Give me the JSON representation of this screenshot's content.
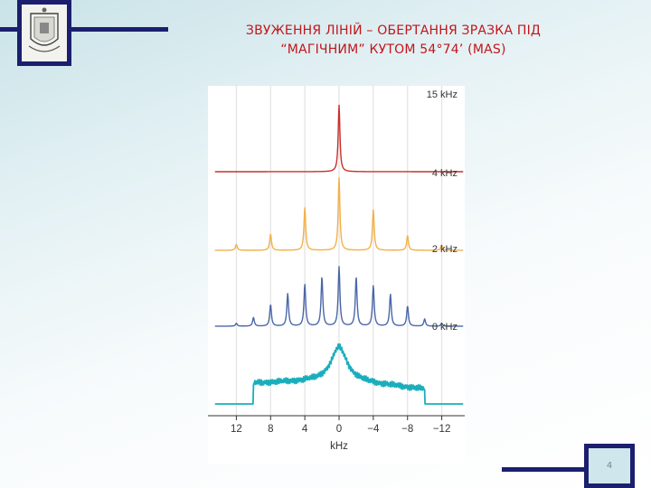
{
  "header": {
    "title_line1": "ЗВУЖЕННЯ ЛІНІЙ – ОБЕРТАННЯ ЗРАЗКА ПІД",
    "title_line2": "“МАГІЧНИМ” КУТОМ 54°74’ (MAS)"
  },
  "footer": {
    "page_number": "4"
  },
  "chart_data": {
    "type": "line",
    "xlabel": "kHz",
    "xlim": [
      15,
      -15
    ],
    "x_ticks": [
      12,
      8,
      4,
      0,
      -4,
      -8,
      -12
    ],
    "x_tick_labels": [
      "12",
      "8",
      "4",
      "0",
      "−4",
      "−8",
      "−12"
    ],
    "grid": true,
    "series": [
      {
        "name": "15 kHz",
        "color": "#c8302c",
        "spinning_rate_khz": 15,
        "sideband_spacing_khz": 15,
        "peaks": [
          {
            "x": 0,
            "height": 0.92
          }
        ]
      },
      {
        "name": "4 kHz",
        "color": "#f2b14a",
        "spinning_rate_khz": 4,
        "sideband_spacing_khz": 4,
        "peaks": [
          {
            "x": 12,
            "height": 0.08
          },
          {
            "x": 8,
            "height": 0.22
          },
          {
            "x": 4,
            "height": 0.58
          },
          {
            "x": 0,
            "height": 0.98
          },
          {
            "x": -4,
            "height": 0.55
          },
          {
            "x": -8,
            "height": 0.2
          },
          {
            "x": -12,
            "height": 0.07
          }
        ]
      },
      {
        "name": "2 kHz",
        "color": "#4a67a8",
        "spinning_rate_khz": 2,
        "sideband_spacing_khz": 2,
        "peaks": [
          {
            "x": 12,
            "height": 0.04
          },
          {
            "x": 10,
            "height": 0.12
          },
          {
            "x": 8,
            "height": 0.3
          },
          {
            "x": 6,
            "height": 0.45
          },
          {
            "x": 4,
            "height": 0.58
          },
          {
            "x": 2,
            "height": 0.68
          },
          {
            "x": 0,
            "height": 0.82
          },
          {
            "x": -2,
            "height": 0.68
          },
          {
            "x": -4,
            "height": 0.56
          },
          {
            "x": -6,
            "height": 0.44
          },
          {
            "x": -8,
            "height": 0.28
          },
          {
            "x": -10,
            "height": 0.1
          },
          {
            "x": -12,
            "height": 0.04
          }
        ]
      },
      {
        "name": "0 kHz",
        "color": "#1aaebc",
        "spinning_rate_khz": 0,
        "shape": "static powder pattern",
        "range_khz": [
          10,
          -10
        ],
        "edge_heights": [
          0.28,
          0.2
        ],
        "peak_height": 0.78
      }
    ]
  }
}
